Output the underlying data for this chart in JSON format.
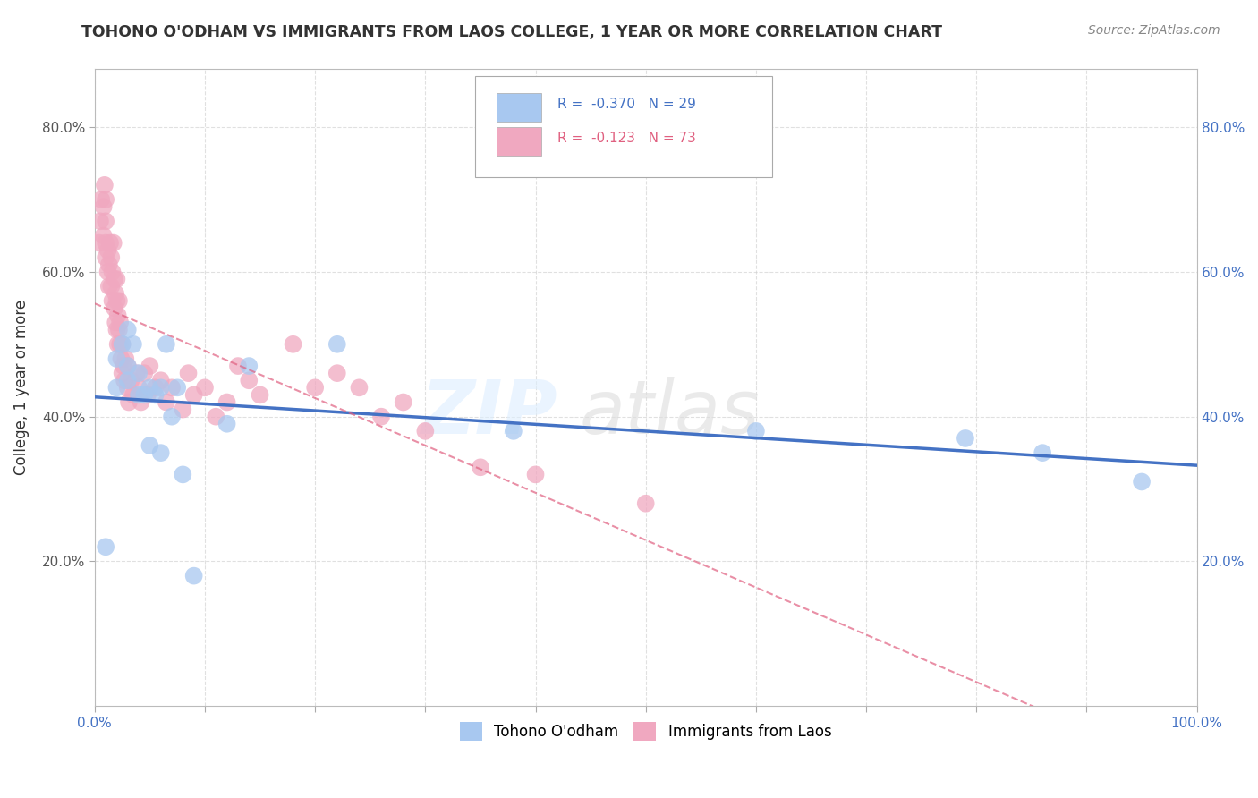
{
  "title": "TOHONO O'ODHAM VS IMMIGRANTS FROM LAOS COLLEGE, 1 YEAR OR MORE CORRELATION CHART",
  "source_text": "Source: ZipAtlas.com",
  "ylabel": "College, 1 year or more",
  "xlim": [
    0.0,
    1.0
  ],
  "ylim": [
    0.0,
    0.88
  ],
  "x_tick_labels": [
    "0.0%",
    "",
    "",
    "",
    "",
    "",
    "",
    "",
    "",
    "",
    "100.0%"
  ],
  "x_tick_vals": [
    0.0,
    0.1,
    0.2,
    0.3,
    0.4,
    0.5,
    0.6,
    0.7,
    0.8,
    0.9,
    1.0
  ],
  "y_tick_labels": [
    "20.0%",
    "40.0%",
    "60.0%",
    "80.0%"
  ],
  "y_tick_vals": [
    0.2,
    0.4,
    0.6,
    0.8
  ],
  "legend_label1": "Tohono O'odham",
  "legend_label2": "Immigrants from Laos",
  "r1": "-0.370",
  "n1": "29",
  "r2": "-0.123",
  "n2": "73",
  "color1": "#a8c8f0",
  "color2": "#f0a8c0",
  "line_color1": "#4472c4",
  "line_color2": "#e06080",
  "background_color": "#ffffff",
  "grid_color": "#cccccc",
  "tohono_x": [
    0.01,
    0.02,
    0.02,
    0.025,
    0.03,
    0.03,
    0.03,
    0.035,
    0.04,
    0.04,
    0.045,
    0.05,
    0.05,
    0.055,
    0.06,
    0.06,
    0.065,
    0.07,
    0.075,
    0.08,
    0.09,
    0.12,
    0.14,
    0.22,
    0.38,
    0.6,
    0.79,
    0.86,
    0.95
  ],
  "tohono_y": [
    0.22,
    0.44,
    0.48,
    0.5,
    0.45,
    0.47,
    0.52,
    0.5,
    0.43,
    0.46,
    0.43,
    0.36,
    0.44,
    0.43,
    0.35,
    0.44,
    0.5,
    0.4,
    0.44,
    0.32,
    0.18,
    0.39,
    0.47,
    0.5,
    0.38,
    0.38,
    0.37,
    0.35,
    0.31
  ],
  "laos_x": [
    0.004,
    0.005,
    0.006,
    0.008,
    0.008,
    0.009,
    0.01,
    0.01,
    0.01,
    0.01,
    0.012,
    0.012,
    0.013,
    0.013,
    0.014,
    0.015,
    0.015,
    0.016,
    0.016,
    0.017,
    0.018,
    0.018,
    0.019,
    0.019,
    0.02,
    0.02,
    0.02,
    0.021,
    0.021,
    0.022,
    0.022,
    0.023,
    0.023,
    0.024,
    0.025,
    0.025,
    0.026,
    0.027,
    0.028,
    0.03,
    0.03,
    0.031,
    0.033,
    0.035,
    0.038,
    0.04,
    0.042,
    0.045,
    0.048,
    0.05,
    0.055,
    0.06,
    0.065,
    0.07,
    0.08,
    0.085,
    0.09,
    0.1,
    0.11,
    0.12,
    0.13,
    0.14,
    0.15,
    0.18,
    0.2,
    0.22,
    0.24,
    0.26,
    0.28,
    0.3,
    0.35,
    0.4,
    0.5
  ],
  "laos_y": [
    0.64,
    0.67,
    0.7,
    0.65,
    0.69,
    0.72,
    0.62,
    0.64,
    0.67,
    0.7,
    0.6,
    0.63,
    0.58,
    0.61,
    0.64,
    0.58,
    0.62,
    0.56,
    0.6,
    0.64,
    0.55,
    0.59,
    0.53,
    0.57,
    0.52,
    0.56,
    0.59,
    0.5,
    0.54,
    0.52,
    0.56,
    0.5,
    0.53,
    0.48,
    0.46,
    0.5,
    0.47,
    0.45,
    0.48,
    0.44,
    0.47,
    0.42,
    0.45,
    0.43,
    0.46,
    0.44,
    0.42,
    0.46,
    0.43,
    0.47,
    0.44,
    0.45,
    0.42,
    0.44,
    0.41,
    0.46,
    0.43,
    0.44,
    0.4,
    0.42,
    0.47,
    0.45,
    0.43,
    0.5,
    0.44,
    0.46,
    0.44,
    0.4,
    0.42,
    0.38,
    0.33,
    0.32,
    0.28
  ]
}
